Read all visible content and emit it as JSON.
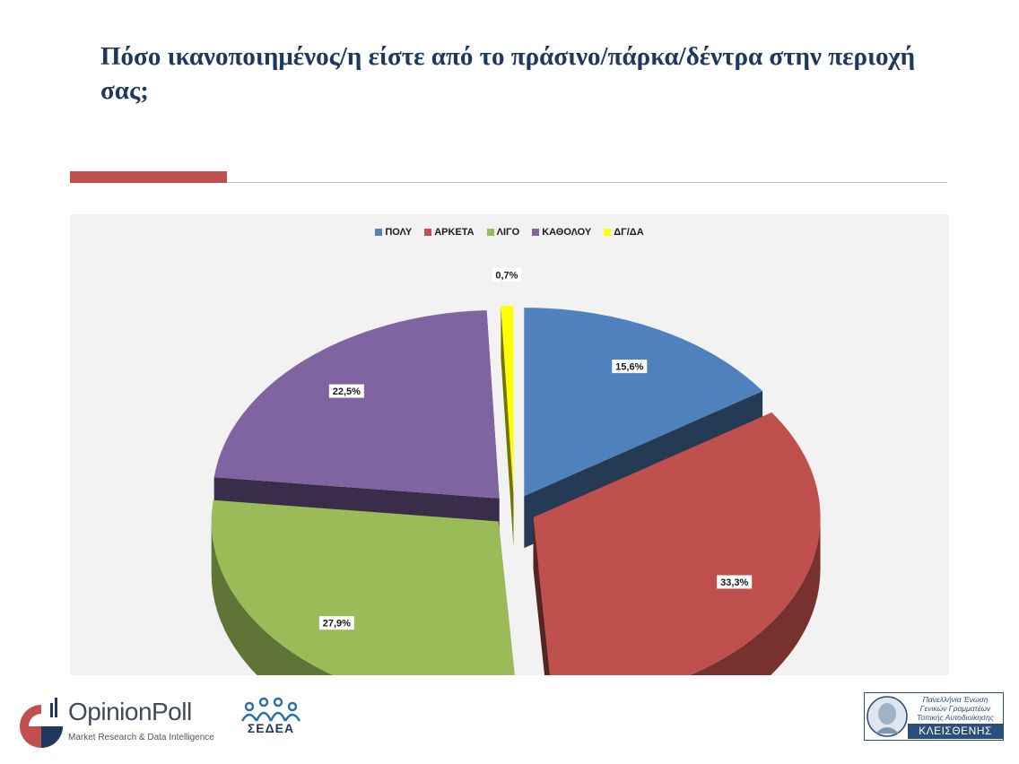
{
  "title": "Πόσο ικανοποιημένος/η είστε από το πράσινο/πάρκα/δέντρα  στην περιοχή σας;",
  "chart_data": {
    "type": "pie",
    "title": "Πόσο ικανοποιημένος/η είστε από το πράσινο/πάρκα/δέντρα  στην περιοχή σας;",
    "legend_position": "top",
    "categories": [
      "ΠΟΛΥ",
      "ΑΡΚΕΤΑ",
      "ΛΙΓΟ",
      "ΚΑΘΟΛΟΥ",
      "ΔΓ/ΔΑ"
    ],
    "values": [
      15.6,
      33.3,
      27.9,
      22.5,
      0.7
    ],
    "labels": [
      "15,6%",
      "33,3%",
      "27,9%",
      "22,5%",
      "0,7%"
    ],
    "colors": [
      "#4f81bd",
      "#c0504d",
      "#9bbb59",
      "#8064a2",
      "#ffff00"
    ]
  },
  "footer": {
    "opinionpoll_name": "OpinionPoll",
    "opinionpoll_tagline": "Market Research & Data Intelligence",
    "sedea_name": "ΣΕΔΕΑ",
    "kleisthenis_line1": "Πανελλήνια Ένωση",
    "kleisthenis_line2": "Γενικών Γραμματέων",
    "kleisthenis_line3": "Τοπικής Αυτοδιοίκησης",
    "kleisthenis_name": "ΚΛΕΙΣΘΕΝΗΣ"
  }
}
